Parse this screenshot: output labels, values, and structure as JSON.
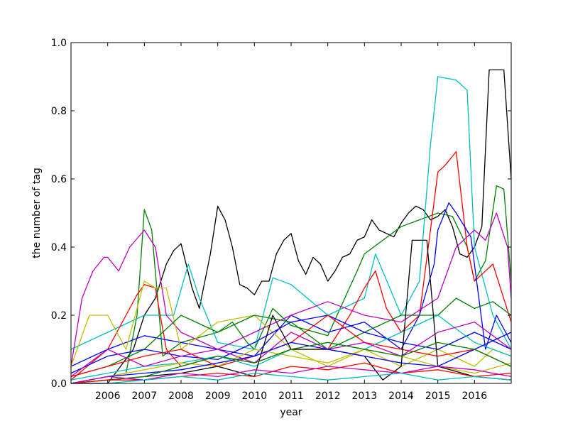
{
  "chart_data": {
    "type": "line",
    "title": "",
    "xlabel": "year",
    "ylabel": "the number of tag",
    "xlim": [
      2005.0,
      2017.0
    ],
    "ylim": [
      0.0,
      1.0
    ],
    "x_ticks": [
      2006,
      2007,
      2008,
      2009,
      2010,
      2011,
      2012,
      2013,
      2014,
      2015,
      2016
    ],
    "x_tick_labels": [
      "2006",
      "2007",
      "2008",
      "2009",
      "2010",
      "2011",
      "2012",
      "2013",
      "2014",
      "2015",
      "2016"
    ],
    "y_ticks": [
      0.0,
      0.2,
      0.4,
      0.6,
      0.8,
      1.0
    ],
    "y_tick_labels": [
      "0.0",
      "0.2",
      "0.4",
      "0.6",
      "0.8",
      "1.0"
    ],
    "grid": false,
    "legend": "none",
    "series": [
      {
        "color": "#000000",
        "x": [
          2005.0,
          2006.0,
          2006.7,
          2007.0,
          2007.3,
          2007.6,
          2007.8,
          2008.0,
          2008.3,
          2008.5,
          2008.8,
          2009.0,
          2009.2,
          2009.4,
          2009.6,
          2009.8,
          2010.0,
          2010.2,
          2010.4,
          2010.6,
          2010.8,
          2011.0,
          2011.2,
          2011.4,
          2011.6,
          2011.8,
          2012.0,
          2012.2,
          2012.4,
          2012.6,
          2012.8,
          2013.0,
          2013.2,
          2013.4,
          2013.6,
          2013.8,
          2014.0,
          2014.2,
          2014.4,
          2014.6,
          2014.8,
          2015.0,
          2015.2,
          2015.4,
          2015.6,
          2015.8,
          2016.0,
          2016.2,
          2016.4,
          2016.6,
          2016.8,
          2017.0
        ],
        "y": [
          0.0,
          0.0,
          0.1,
          0.2,
          0.25,
          0.35,
          0.39,
          0.41,
          0.28,
          0.22,
          0.38,
          0.52,
          0.48,
          0.4,
          0.29,
          0.28,
          0.26,
          0.3,
          0.3,
          0.38,
          0.42,
          0.44,
          0.36,
          0.32,
          0.37,
          0.35,
          0.3,
          0.33,
          0.37,
          0.38,
          0.42,
          0.43,
          0.48,
          0.45,
          0.44,
          0.43,
          0.47,
          0.5,
          0.52,
          0.51,
          0.48,
          0.49,
          0.51,
          0.46,
          0.38,
          0.37,
          0.4,
          0.46,
          0.92,
          0.92,
          0.92,
          0.6
        ]
      },
      {
        "color": "#008000",
        "x": [
          2005.0,
          2006.0,
          2006.5,
          2006.8,
          2007.0,
          2007.2,
          2007.5,
          2008.0,
          2009.0,
          2009.4,
          2009.8,
          2010.0,
          2010.5,
          2011.0,
          2012.0,
          2012.8,
          2013.0,
          2014.0,
          2015.0,
          2015.4,
          2015.8,
          2016.0,
          2016.3,
          2016.6,
          2016.8,
          2017.0
        ],
        "y": [
          0.0,
          0.02,
          0.03,
          0.2,
          0.51,
          0.45,
          0.08,
          0.12,
          0.15,
          0.18,
          0.12,
          0.1,
          0.22,
          0.17,
          0.14,
          0.33,
          0.38,
          0.46,
          0.5,
          0.49,
          0.4,
          0.3,
          0.36,
          0.58,
          0.57,
          0.3
        ]
      },
      {
        "color": "#00bfbf",
        "x": [
          2005.0,
          2006.0,
          2007.0,
          2007.8,
          2008.2,
          2008.5,
          2009.0,
          2010.0,
          2010.5,
          2011.0,
          2012.0,
          2013.0,
          2013.3,
          2014.0,
          2014.5,
          2014.8,
          2015.0,
          2015.5,
          2015.8,
          2016.0,
          2016.5,
          2017.0
        ],
        "y": [
          0.1,
          0.15,
          0.2,
          0.2,
          0.35,
          0.25,
          0.12,
          0.1,
          0.31,
          0.29,
          0.2,
          0.25,
          0.38,
          0.2,
          0.3,
          0.7,
          0.9,
          0.89,
          0.86,
          0.4,
          0.2,
          0.1
        ]
      },
      {
        "color": "#ff0000",
        "x": [
          2005.0,
          2006.0,
          2006.5,
          2006.8,
          2007.0,
          2007.3,
          2007.6,
          2008.0,
          2009.0,
          2010.0,
          2011.0,
          2012.0,
          2012.6,
          2013.0,
          2013.3,
          2013.6,
          2014.0,
          2014.5,
          2014.8,
          2015.0,
          2015.2,
          2015.5,
          2015.8,
          2016.0,
          2016.5,
          2017.0
        ],
        "y": [
          0.01,
          0.1,
          0.2,
          0.26,
          0.29,
          0.28,
          0.1,
          0.05,
          0.08,
          0.06,
          0.1,
          0.1,
          0.2,
          0.28,
          0.33,
          0.22,
          0.15,
          0.2,
          0.45,
          0.62,
          0.64,
          0.68,
          0.4,
          0.3,
          0.35,
          0.18
        ]
      },
      {
        "color": "#0000ff",
        "x": [
          2005.0,
          2006.0,
          2007.0,
          2008.0,
          2009.0,
          2010.0,
          2011.0,
          2012.0,
          2013.0,
          2014.0,
          2014.5,
          2014.9,
          2015.0,
          2015.3,
          2015.5,
          2015.9,
          2016.3,
          2016.6,
          2017.0
        ],
        "y": [
          0.05,
          0.1,
          0.14,
          0.12,
          0.1,
          0.08,
          0.2,
          0.15,
          0.18,
          0.1,
          0.2,
          0.35,
          0.45,
          0.53,
          0.5,
          0.43,
          0.1,
          0.2,
          0.12
        ]
      },
      {
        "color": "#bf00bf",
        "x": [
          2005.0,
          2005.3,
          2005.6,
          2005.9,
          2006.0,
          2006.3,
          2006.6,
          2007.0,
          2007.3,
          2007.6,
          2008.0,
          2009.0,
          2010.0,
          2011.0,
          2012.0,
          2013.0,
          2014.0,
          2015.0,
          2015.5,
          2016.0,
          2016.3,
          2016.6,
          2016.9,
          2017.0
        ],
        "y": [
          0.05,
          0.25,
          0.33,
          0.37,
          0.37,
          0.33,
          0.4,
          0.45,
          0.4,
          0.2,
          0.15,
          0.1,
          0.15,
          0.2,
          0.24,
          0.2,
          0.18,
          0.25,
          0.4,
          0.45,
          0.42,
          0.5,
          0.4,
          0.25
        ]
      },
      {
        "color": "#bfbf00",
        "x": [
          2005.0,
          2005.5,
          2006.0,
          2006.5,
          2007.0,
          2007.3,
          2007.6,
          2008.0,
          2009.0,
          2010.0,
          2011.0,
          2012.0,
          2013.0,
          2014.0,
          2015.0,
          2016.0,
          2016.5,
          2017.0
        ],
        "y": [
          0.05,
          0.2,
          0.2,
          0.1,
          0.3,
          0.28,
          0.28,
          0.1,
          0.18,
          0.2,
          0.1,
          0.05,
          0.1,
          0.05,
          0.1,
          0.05,
          0.1,
          0.08
        ]
      },
      {
        "color": "#008000",
        "x": [
          2005.0,
          2006.0,
          2007.0,
          2008.0,
          2009.0,
          2010.0,
          2011.0,
          2012.0,
          2013.0,
          2014.0,
          2015.0,
          2015.5,
          2016.0,
          2016.5,
          2017.0
        ],
        "y": [
          0.02,
          0.05,
          0.1,
          0.2,
          0.15,
          0.2,
          0.18,
          0.1,
          0.15,
          0.2,
          0.2,
          0.25,
          0.22,
          0.24,
          0.2
        ]
      },
      {
        "color": "#0000ff",
        "x": [
          2005.0,
          2006.0,
          2007.0,
          2008.0,
          2009.0,
          2010.0,
          2011.0,
          2012.0,
          2013.0,
          2014.0,
          2015.0,
          2016.0,
          2017.0
        ],
        "y": [
          0.03,
          0.08,
          0.1,
          0.08,
          0.07,
          0.12,
          0.18,
          0.2,
          0.15,
          0.12,
          0.1,
          0.15,
          0.1
        ]
      },
      {
        "color": "#ff0000",
        "x": [
          2005.0,
          2006.0,
          2007.0,
          2008.0,
          2009.0,
          2010.0,
          2011.0,
          2012.0,
          2013.0,
          2014.0,
          2015.0,
          2016.0,
          2017.0
        ],
        "y": [
          0.02,
          0.05,
          0.08,
          0.1,
          0.05,
          0.08,
          0.12,
          0.2,
          0.12,
          0.1,
          0.08,
          0.1,
          0.05
        ]
      },
      {
        "color": "#00bfbf",
        "x": [
          2005.0,
          2006.0,
          2007.0,
          2008.0,
          2009.0,
          2010.0,
          2011.0,
          2012.0,
          2013.0,
          2014.0,
          2015.0,
          2016.0,
          2017.0
        ],
        "y": [
          0.01,
          0.03,
          0.05,
          0.06,
          0.08,
          0.05,
          0.1,
          0.12,
          0.1,
          0.15,
          0.2,
          0.12,
          0.08
        ]
      },
      {
        "color": "#bf00bf",
        "x": [
          2005.0,
          2006.0,
          2007.0,
          2008.0,
          2009.0,
          2010.0,
          2011.0,
          2012.0,
          2013.0,
          2014.0,
          2015.0,
          2016.0,
          2017.0
        ],
        "y": [
          0.02,
          0.1,
          0.05,
          0.08,
          0.1,
          0.06,
          0.15,
          0.1,
          0.12,
          0.08,
          0.15,
          0.18,
          0.1
        ]
      },
      {
        "color": "#bfbf00",
        "x": [
          2005.0,
          2006.0,
          2007.0,
          2008.0,
          2009.0,
          2010.0,
          2011.0,
          2012.0,
          2013.0,
          2014.0,
          2015.0,
          2016.0,
          2017.0
        ],
        "y": [
          0.0,
          0.02,
          0.04,
          0.06,
          0.05,
          0.1,
          0.08,
          0.06,
          0.1,
          0.08,
          0.05,
          0.03,
          0.06
        ]
      },
      {
        "color": "#000000",
        "x": [
          2005.0,
          2006.0,
          2007.0,
          2008.0,
          2009.0,
          2010.0,
          2010.5,
          2011.0,
          2012.0,
          2013.0,
          2013.5,
          2014.0,
          2014.3,
          2014.7,
          2015.0,
          2016.0,
          2017.0
        ],
        "y": [
          0.0,
          0.01,
          0.02,
          0.03,
          0.05,
          0.02,
          0.2,
          0.1,
          0.1,
          0.08,
          0.01,
          0.05,
          0.42,
          0.42,
          0.05,
          0.02,
          0.01
        ]
      },
      {
        "color": "#0000ff",
        "x": [
          2005.0,
          2006.0,
          2007.0,
          2008.0,
          2009.0,
          2010.0,
          2011.0,
          2012.0,
          2013.0,
          2014.0,
          2015.0,
          2016.0,
          2017.0
        ],
        "y": [
          0.0,
          0.02,
          0.03,
          0.04,
          0.06,
          0.08,
          0.12,
          0.1,
          0.08,
          0.06,
          0.05,
          0.1,
          0.15
        ]
      },
      {
        "color": "#008000",
        "x": [
          2005.0,
          2006.0,
          2007.0,
          2008.0,
          2009.0,
          2010.0,
          2011.0,
          2012.0,
          2013.0,
          2014.0,
          2015.0,
          2016.0,
          2017.0
        ],
        "y": [
          0.0,
          0.01,
          0.02,
          0.05,
          0.08,
          0.06,
          0.1,
          0.12,
          0.1,
          0.08,
          0.12,
          0.1,
          0.05
        ]
      },
      {
        "color": "#ff0000",
        "x": [
          2005.0,
          2006.0,
          2007.0,
          2008.0,
          2009.0,
          2010.0,
          2011.0,
          2012.0,
          2013.0,
          2014.0,
          2015.0,
          2016.0,
          2017.0
        ],
        "y": [
          0.0,
          0.01,
          0.01,
          0.02,
          0.03,
          0.02,
          0.05,
          0.04,
          0.06,
          0.03,
          0.04,
          0.02,
          0.03
        ]
      },
      {
        "color": "#bf00bf",
        "x": [
          2005.0,
          2006.0,
          2007.0,
          2008.0,
          2009.0,
          2010.0,
          2011.0,
          2012.0,
          2013.0,
          2014.0,
          2015.0,
          2016.0,
          2017.0
        ],
        "y": [
          0.0,
          0.02,
          0.01,
          0.03,
          0.02,
          0.04,
          0.03,
          0.05,
          0.04,
          0.03,
          0.05,
          0.04,
          0.02
        ]
      },
      {
        "color": "#00bfbf",
        "x": [
          2005.0,
          2006.0,
          2007.0,
          2008.0,
          2009.0,
          2010.0,
          2011.0,
          2012.0,
          2013.0,
          2014.0,
          2015.0,
          2016.0,
          2017.0
        ],
        "y": [
          0.0,
          0.0,
          0.01,
          0.02,
          0.01,
          0.03,
          0.02,
          0.01,
          0.02,
          0.03,
          0.01,
          0.02,
          0.01
        ]
      }
    ]
  }
}
